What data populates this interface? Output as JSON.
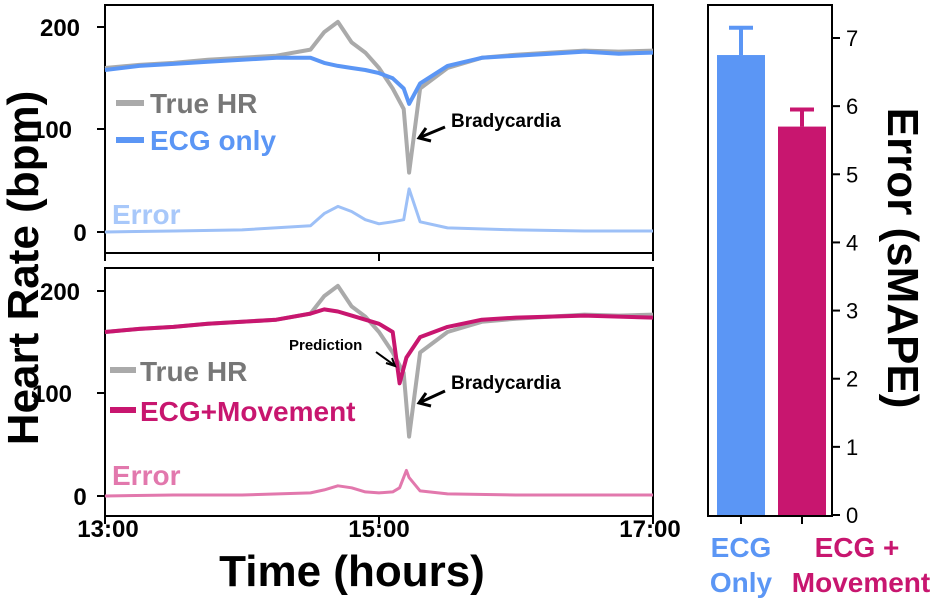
{
  "chart_data": [
    {
      "type": "line",
      "panel": "top",
      "xlim": [
        "13:00",
        "17:00"
      ],
      "ylim": [
        0,
        220
      ],
      "y_ticks": [
        "200",
        "100",
        "0"
      ],
      "legend": "left",
      "series": [
        {
          "name": "True HR",
          "color": "#aaaaaa",
          "x": [
            13.0,
            13.25,
            13.5,
            13.75,
            14.0,
            14.25,
            14.5,
            14.6,
            14.7,
            14.8,
            14.9,
            15.0,
            15.1,
            15.18,
            15.22,
            15.3,
            15.5,
            15.75,
            16.0,
            16.25,
            16.5,
            16.75,
            17.0
          ],
          "y": [
            160,
            163,
            165,
            168,
            170,
            172,
            178,
            195,
            205,
            185,
            175,
            160,
            140,
            120,
            58,
            140,
            160,
            170,
            173,
            175,
            177,
            176,
            177
          ]
        },
        {
          "name": "ECG only",
          "color": "#5b96f5",
          "x": [
            13.0,
            13.25,
            13.5,
            13.75,
            14.0,
            14.25,
            14.5,
            14.6,
            14.7,
            14.8,
            14.9,
            15.0,
            15.1,
            15.18,
            15.22,
            15.3,
            15.5,
            15.75,
            16.0,
            16.25,
            16.5,
            16.75,
            17.0
          ],
          "y": [
            158,
            162,
            164,
            166,
            168,
            170,
            170,
            165,
            162,
            160,
            158,
            155,
            150,
            140,
            125,
            145,
            162,
            170,
            172,
            174,
            176,
            174,
            175
          ]
        },
        {
          "name": "Error",
          "color": "#9dc0f7",
          "x": [
            13.0,
            13.5,
            14.0,
            14.5,
            14.6,
            14.7,
            14.8,
            14.9,
            15.0,
            15.1,
            15.18,
            15.22,
            15.3,
            15.5,
            16.0,
            16.5,
            17.0
          ],
          "y": [
            0,
            1,
            2,
            6,
            18,
            25,
            20,
            12,
            8,
            10,
            12,
            42,
            10,
            4,
            2,
            1,
            1
          ]
        }
      ],
      "annotations": [
        "Bradycardia"
      ]
    },
    {
      "type": "line",
      "panel": "bottom",
      "xlim": [
        "13:00",
        "17:00"
      ],
      "ylim": [
        0,
        220
      ],
      "y_ticks": [
        "200",
        "100",
        "0"
      ],
      "x_ticks": [
        "13:00",
        "15:00",
        "17:00"
      ],
      "legend": "left",
      "series": [
        {
          "name": "True HR",
          "color": "#aaaaaa",
          "x": [
            13.0,
            13.25,
            13.5,
            13.75,
            14.0,
            14.25,
            14.5,
            14.6,
            14.7,
            14.8,
            14.9,
            15.0,
            15.1,
            15.18,
            15.22,
            15.3,
            15.5,
            15.75,
            16.0,
            16.25,
            16.5,
            16.75,
            17.0
          ],
          "y": [
            160,
            163,
            165,
            168,
            170,
            172,
            178,
            195,
            205,
            185,
            175,
            160,
            140,
            120,
            58,
            140,
            160,
            170,
            173,
            175,
            177,
            176,
            177
          ]
        },
        {
          "name": "ECG+Movement",
          "color": "#c8166f",
          "x": [
            13.0,
            13.25,
            13.5,
            13.75,
            14.0,
            14.25,
            14.5,
            14.6,
            14.7,
            14.8,
            14.9,
            15.0,
            15.1,
            15.15,
            15.2,
            15.3,
            15.5,
            15.75,
            16.0,
            16.25,
            16.5,
            16.75,
            17.0
          ],
          "y": [
            160,
            163,
            165,
            168,
            170,
            172,
            178,
            182,
            180,
            176,
            172,
            168,
            160,
            110,
            135,
            155,
            165,
            172,
            174,
            175,
            176,
            175,
            174
          ]
        },
        {
          "name": "Error",
          "color": "#e278ad",
          "x": [
            13.0,
            13.5,
            14.0,
            14.5,
            14.6,
            14.7,
            14.8,
            14.9,
            15.0,
            15.1,
            15.15,
            15.2,
            15.22,
            15.3,
            15.5,
            16.0,
            16.5,
            17.0
          ],
          "y": [
            0,
            1,
            1,
            3,
            6,
            10,
            8,
            4,
            3,
            4,
            8,
            25,
            18,
            5,
            2,
            1,
            1,
            1
          ]
        }
      ],
      "annotations": [
        "Prediction",
        "Bradycardia"
      ]
    },
    {
      "type": "bar",
      "panel": "right",
      "categories": [
        "ECG Only",
        "ECG + Movement"
      ],
      "values": [
        6.75,
        5.7
      ],
      "errors": [
        0.4,
        0.25
      ],
      "colors": [
        "#5b96f5",
        "#c8166f"
      ],
      "ylim": [
        0,
        7.5
      ],
      "y_ticks": [
        "0",
        "1",
        "2",
        "3",
        "4",
        "5",
        "6",
        "7"
      ],
      "ylabel": "Error (sMAPE)"
    }
  ],
  "labels": {
    "ylabel_left": "Heart Rate (bpm)",
    "xlabel": "Time (hours)",
    "ylabel_right": "Error (sMAPE)",
    "top_legend_true": "True HR",
    "top_legend_pred": "ECG only",
    "top_error": "Error",
    "top_brady": "Bradycardia",
    "bot_legend_true": "True HR",
    "bot_legend_pred": "ECG+Movement",
    "bot_error": "Error",
    "bot_brady": "Bradycardia",
    "bot_prediction": "Prediction",
    "cat1_line1": "ECG",
    "cat1_line2": "Only",
    "cat2_line1": "ECG +",
    "cat2_line2": "Movement",
    "xtick_1": "13:00",
    "xtick_2": "15:00",
    "xtick_3": "17:00",
    "ytick_top_200": "200",
    "ytick_top_100": "100",
    "ytick_top_0": "0",
    "ytick_bot_200": "200",
    "ytick_bot_100": "100",
    "ytick_bot_0": "0"
  }
}
